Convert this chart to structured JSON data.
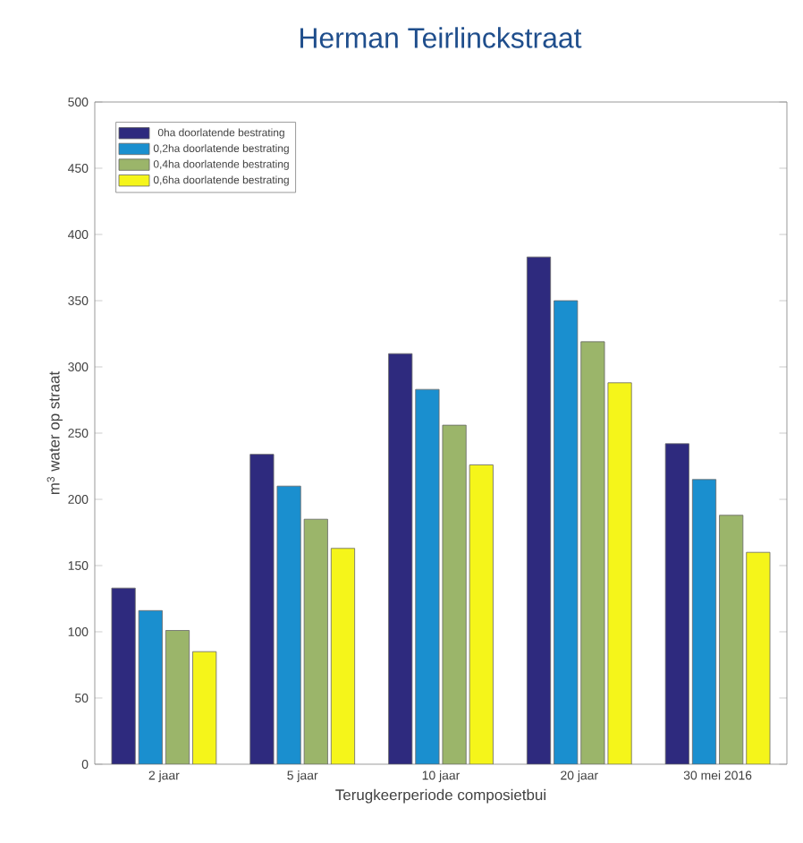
{
  "chart_data": {
    "type": "bar",
    "title": "Herman Teirlinckstraat",
    "xlabel": "Terugkeerperiode composietbui",
    "ylabel": "m$^{3}$ water op straat",
    "categories": [
      "2 jaar",
      "5 jaar",
      "10 jaar",
      "20 jaar",
      "30 mei 2016"
    ],
    "series": [
      {
        "name": "0ha doorlatende bestrating",
        "color": "#2e2a7e",
        "values": [
          133,
          234,
          310,
          383,
          242
        ]
      },
      {
        "name": "0,2ha doorlatende bestrating",
        "color": "#1a8fcf",
        "values": [
          116,
          210,
          283,
          350,
          215
        ]
      },
      {
        "name": "0,4ha doorlatende bestrating",
        "color": "#9bb56a",
        "values": [
          101,
          185,
          256,
          319,
          188
        ]
      },
      {
        "name": "0,6ha doorlatende bestrating",
        "color": "#f5f51a",
        "values": [
          85,
          163,
          226,
          288,
          160
        ]
      }
    ],
    "ylim": [
      0,
      500
    ],
    "yticks": [
      0,
      50,
      100,
      150,
      200,
      250,
      300,
      350,
      400,
      450,
      500
    ],
    "grid": false,
    "legend": "top left"
  }
}
